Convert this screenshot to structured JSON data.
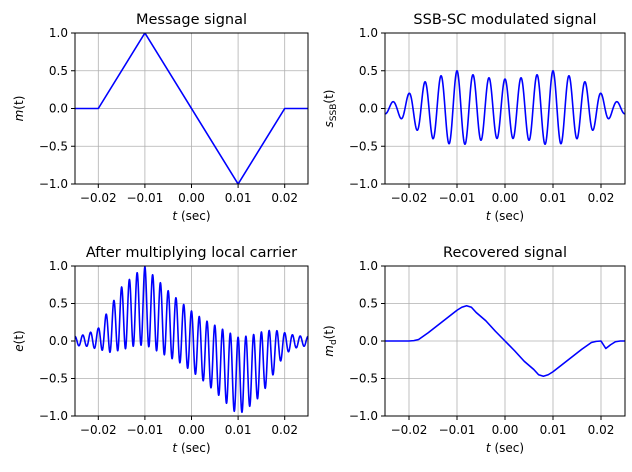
{
  "chart_data": [
    {
      "type": "line",
      "title": "Message signal",
      "xlabel": "t (sec)",
      "ylabel": "m(t)",
      "xlim": [
        -0.025,
        0.025
      ],
      "ylim": [
        -1.0,
        1.0
      ],
      "xticks": [
        -0.02,
        -0.01,
        0.0,
        0.01,
        0.02
      ],
      "xtick_labels": [
        "−0.02",
        "−0.01",
        "0.00",
        "0.01",
        "0.02"
      ],
      "yticks": [
        -1.0,
        -0.5,
        0.0,
        0.5,
        1.0
      ],
      "ytick_labels": [
        "−1.0",
        "−0.5",
        "0.0",
        "0.5",
        "1.0"
      ],
      "grid": true,
      "color": "#0000ff",
      "series": [
        {
          "x": [
            -0.025,
            -0.02,
            -0.01,
            0.01,
            0.02,
            0.025
          ],
          "y": [
            0,
            0,
            1,
            -1,
            0,
            0
          ]
        }
      ]
    },
    {
      "type": "line",
      "title": "SSB-SC modulated signal",
      "xlabel": "t (sec)",
      "ylabel": "s_SSB(t)",
      "xlim": [
        -0.025,
        0.025
      ],
      "ylim": [
        -1.0,
        1.0
      ],
      "xticks": [
        -0.02,
        -0.01,
        0.0,
        0.01,
        0.02
      ],
      "xtick_labels": [
        "−0.02",
        "−0.01",
        "0.00",
        "0.01",
        "0.02"
      ],
      "yticks": [
        -1.0,
        -0.5,
        0.0,
        0.5,
        1.0
      ],
      "ytick_labels": [
        "−1.0",
        "−0.5",
        "0.0",
        "0.5",
        "1.0"
      ],
      "grid": true,
      "color": "#0000ff",
      "carrier_hz": 300,
      "series": [
        {
          "x": [
            -0.025,
            -0.0225,
            -0.02,
            -0.0175,
            -0.015,
            -0.0125,
            -0.01,
            -0.0075,
            -0.005,
            -0.0025,
            0.0,
            0.0025,
            0.005,
            0.0075,
            0.01,
            0.0125,
            0.015,
            0.0175,
            0.02,
            0.0225,
            0.025
          ],
          "envelope": [
            0.07,
            0.1,
            0.2,
            0.33,
            0.4,
            0.45,
            0.5,
            0.46,
            0.42,
            0.4,
            0.39,
            0.4,
            0.42,
            0.46,
            0.5,
            0.45,
            0.4,
            0.33,
            0.2,
            0.1,
            0.07
          ]
        }
      ]
    },
    {
      "type": "line",
      "title": "After multiplying local carrier",
      "xlabel": "t (sec)",
      "ylabel": "e(t)",
      "xlim": [
        -0.025,
        0.025
      ],
      "ylim": [
        -1.0,
        1.0
      ],
      "xticks": [
        -0.02,
        -0.01,
        0.0,
        0.01,
        0.02
      ],
      "xtick_labels": [
        "−0.02",
        "−0.01",
        "0.00",
        "0.01",
        "0.02"
      ],
      "yticks": [
        -1.0,
        -0.5,
        0.0,
        0.5,
        1.0
      ],
      "ytick_labels": [
        "−1.0",
        "−0.5",
        "0.0",
        "0.5",
        "1.0"
      ],
      "grid": true,
      "color": "#0000ff",
      "carrier_hz": 600,
      "series": [
        {
          "x": [
            -0.025,
            -0.0225,
            -0.02,
            -0.0175,
            -0.015,
            -0.0125,
            -0.01,
            -0.0075,
            -0.005,
            -0.0025,
            0.0,
            0.0025,
            0.005,
            0.0075,
            0.01,
            0.0125,
            0.015,
            0.0175,
            0.02,
            0.0225,
            0.025
          ],
          "baseline": [
            0.0,
            0.01,
            0.03,
            0.15,
            0.3,
            0.4,
            0.47,
            0.35,
            0.23,
            0.12,
            0.0,
            -0.12,
            -0.23,
            -0.35,
            -0.47,
            -0.4,
            -0.3,
            -0.15,
            -0.03,
            -0.01,
            0.0
          ],
          "envelope": [
            0.06,
            0.08,
            0.14,
            0.3,
            0.42,
            0.47,
            0.52,
            0.48,
            0.44,
            0.41,
            0.4,
            0.41,
            0.44,
            0.48,
            0.52,
            0.47,
            0.42,
            0.3,
            0.14,
            0.08,
            0.06
          ]
        }
      ]
    },
    {
      "type": "line",
      "title": "Recovered signal",
      "xlabel": "t (sec)",
      "ylabel": "m_d(t)",
      "xlim": [
        -0.025,
        0.025
      ],
      "ylim": [
        -1.0,
        1.0
      ],
      "xticks": [
        -0.02,
        -0.01,
        0.0,
        0.01,
        0.02
      ],
      "xtick_labels": [
        "−0.02",
        "−0.01",
        "0.00",
        "0.01",
        "0.02"
      ],
      "yticks": [
        -1.0,
        -0.5,
        0.0,
        0.5,
        1.0
      ],
      "ytick_labels": [
        "−1.0",
        "−0.5",
        "0.0",
        "0.5",
        "1.0"
      ],
      "grid": true,
      "color": "#0000ff",
      "series": [
        {
          "x": [
            -0.025,
            -0.02,
            -0.019,
            -0.018,
            -0.016,
            -0.014,
            -0.012,
            -0.01,
            -0.009,
            -0.008,
            -0.007,
            -0.006,
            -0.004,
            -0.002,
            0.0,
            0.002,
            0.004,
            0.006,
            0.007,
            0.008,
            0.009,
            0.01,
            0.012,
            0.014,
            0.016,
            0.018,
            0.019,
            0.02,
            0.021,
            0.022,
            0.023,
            0.024,
            0.025
          ],
          "y": [
            0.0,
            0.0,
            0.005,
            0.02,
            0.11,
            0.21,
            0.31,
            0.41,
            0.45,
            0.47,
            0.45,
            0.38,
            0.27,
            0.13,
            0.0,
            -0.13,
            -0.27,
            -0.38,
            -0.45,
            -0.47,
            -0.45,
            -0.41,
            -0.31,
            -0.21,
            -0.11,
            -0.02,
            -0.005,
            0.0,
            -0.1,
            -0.05,
            -0.01,
            0.0,
            0.0
          ]
        }
      ]
    }
  ]
}
